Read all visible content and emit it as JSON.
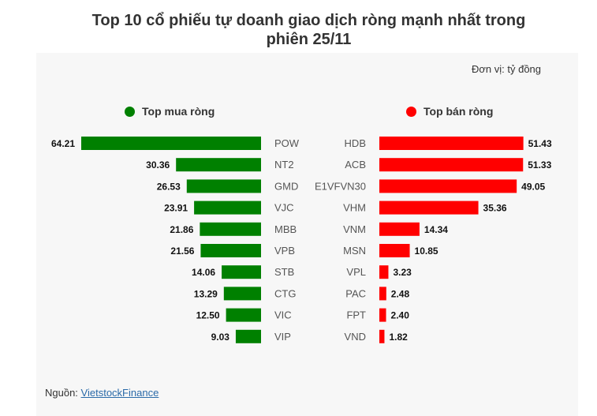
{
  "title_line1": "Top 10 cổ phiếu tự doanh giao dịch ròng mạnh nhất trong",
  "title_line2": "phiên 25/11",
  "unit_text": "Đơn vị: tỷ đồng",
  "source_label": "Nguồn: ",
  "source_link": "VietstockFinance",
  "colors": {
    "buy": "#008000",
    "sell": "#ff0000",
    "text": "#333333",
    "tick": "#555555"
  },
  "chart_data": [
    {
      "type": "bar",
      "orientation": "horizontal",
      "title": "Top mua ròng",
      "categories": [
        "POW",
        "NT2",
        "GMD",
        "VJC",
        "MBB",
        "VPB",
        "STB",
        "CTG",
        "VIC",
        "VIP"
      ],
      "values": [
        64.21,
        30.36,
        26.53,
        23.91,
        21.86,
        21.56,
        14.06,
        13.29,
        12.5,
        9.03
      ],
      "value_labels": [
        "64.21",
        "30.36",
        "26.53",
        "23.91",
        "21.86",
        "21.56",
        "14.06",
        "13.29",
        "12.50",
        "9.03"
      ],
      "direction": "right-to-left",
      "color": "#008000"
    },
    {
      "type": "bar",
      "orientation": "horizontal",
      "title": "Top bán ròng",
      "categories": [
        "HDB",
        "ACB",
        "E1VFVN30",
        "VHM",
        "VNM",
        "MSN",
        "VPL",
        "PAC",
        "FPT",
        "VND"
      ],
      "values": [
        51.43,
        51.33,
        49.05,
        35.36,
        14.34,
        10.85,
        3.23,
        2.48,
        2.4,
        1.82
      ],
      "value_labels": [
        "51.43",
        "51.33",
        "49.05",
        "35.36",
        "14.34",
        "10.85",
        "3.23",
        "2.48",
        "2.40",
        "1.82"
      ],
      "direction": "left-to-right",
      "color": "#ff0000"
    }
  ]
}
